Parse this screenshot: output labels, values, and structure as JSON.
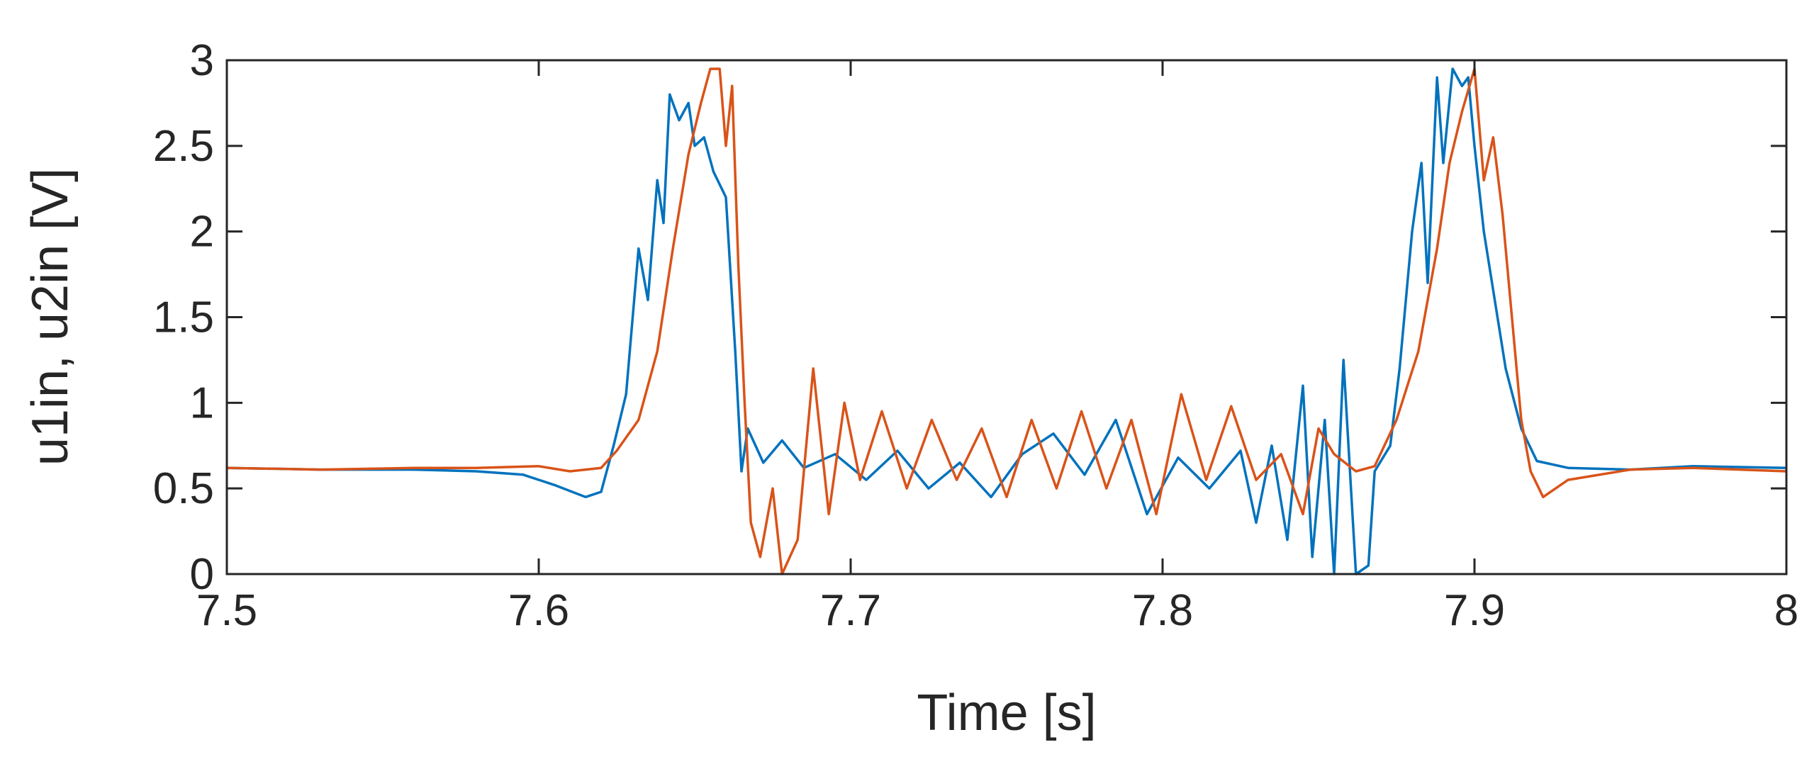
{
  "chart_data": {
    "type": "line",
    "xlabel": "Time [s]",
    "ylabel": "u1in, u2in [V]",
    "xlim": [
      7.5,
      8
    ],
    "ylim": [
      0,
      3
    ],
    "xticks": [
      "7.5",
      "7.6",
      "7.7",
      "7.8",
      "7.9",
      "8"
    ],
    "yticks": [
      "0",
      "0.5",
      "1",
      "1.5",
      "2",
      "2.5",
      "3"
    ],
    "grid": false,
    "legend": "none",
    "series": [
      {
        "color": "#0072BD",
        "points": [
          [
            7.5,
            0.62
          ],
          [
            7.53,
            0.61
          ],
          [
            7.56,
            0.61
          ],
          [
            7.58,
            0.6
          ],
          [
            7.595,
            0.58
          ],
          [
            7.605,
            0.52
          ],
          [
            7.615,
            0.45
          ],
          [
            7.62,
            0.48
          ],
          [
            7.624,
            0.75
          ],
          [
            7.628,
            1.05
          ],
          [
            7.632,
            1.9
          ],
          [
            7.635,
            1.6
          ],
          [
            7.638,
            2.3
          ],
          [
            7.64,
            2.05
          ],
          [
            7.642,
            2.8
          ],
          [
            7.645,
            2.65
          ],
          [
            7.648,
            2.75
          ],
          [
            7.65,
            2.5
          ],
          [
            7.653,
            2.55
          ],
          [
            7.656,
            2.35
          ],
          [
            7.66,
            2.2
          ],
          [
            7.663,
            1.3
          ],
          [
            7.665,
            0.6
          ],
          [
            7.667,
            0.85
          ],
          [
            7.672,
            0.65
          ],
          [
            7.678,
            0.78
          ],
          [
            7.685,
            0.62
          ],
          [
            7.695,
            0.7
          ],
          [
            7.705,
            0.55
          ],
          [
            7.715,
            0.72
          ],
          [
            7.725,
            0.5
          ],
          [
            7.735,
            0.65
          ],
          [
            7.745,
            0.45
          ],
          [
            7.755,
            0.7
          ],
          [
            7.765,
            0.82
          ],
          [
            7.775,
            0.58
          ],
          [
            7.785,
            0.9
          ],
          [
            7.795,
            0.35
          ],
          [
            7.805,
            0.68
          ],
          [
            7.815,
            0.5
          ],
          [
            7.825,
            0.72
          ],
          [
            7.83,
            0.3
          ],
          [
            7.835,
            0.75
          ],
          [
            7.84,
            0.2
          ],
          [
            7.845,
            1.1
          ],
          [
            7.848,
            0.1
          ],
          [
            7.852,
            0.9
          ],
          [
            7.855,
            0.0
          ],
          [
            7.858,
            1.25
          ],
          [
            7.862,
            0.0
          ],
          [
            7.866,
            0.05
          ],
          [
            7.868,
            0.6
          ],
          [
            7.873,
            0.75
          ],
          [
            7.876,
            1.2
          ],
          [
            7.88,
            2.0
          ],
          [
            7.883,
            2.4
          ],
          [
            7.885,
            1.7
          ],
          [
            7.888,
            2.9
          ],
          [
            7.89,
            2.4
          ],
          [
            7.893,
            2.95
          ],
          [
            7.896,
            2.85
          ],
          [
            7.898,
            2.9
          ],
          [
            7.9,
            2.5
          ],
          [
            7.903,
            2.0
          ],
          [
            7.91,
            1.2
          ],
          [
            7.915,
            0.85
          ],
          [
            7.92,
            0.66
          ],
          [
            7.93,
            0.62
          ],
          [
            7.95,
            0.61
          ],
          [
            7.97,
            0.63
          ],
          [
            8.0,
            0.62
          ]
        ]
      },
      {
        "color": "#D95319",
        "points": [
          [
            7.5,
            0.62
          ],
          [
            7.53,
            0.61
          ],
          [
            7.56,
            0.62
          ],
          [
            7.58,
            0.62
          ],
          [
            7.6,
            0.63
          ],
          [
            7.61,
            0.6
          ],
          [
            7.62,
            0.62
          ],
          [
            7.625,
            0.72
          ],
          [
            7.632,
            0.9
          ],
          [
            7.638,
            1.3
          ],
          [
            7.643,
            1.9
          ],
          [
            7.648,
            2.45
          ],
          [
            7.652,
            2.75
          ],
          [
            7.655,
            2.95
          ],
          [
            7.658,
            2.95
          ],
          [
            7.66,
            2.5
          ],
          [
            7.662,
            2.85
          ],
          [
            7.664,
            1.8
          ],
          [
            7.666,
            1.0
          ],
          [
            7.668,
            0.3
          ],
          [
            7.671,
            0.1
          ],
          [
            7.675,
            0.5
          ],
          [
            7.678,
            0.0
          ],
          [
            7.683,
            0.2
          ],
          [
            7.688,
            1.2
          ],
          [
            7.693,
            0.35
          ],
          [
            7.698,
            1.0
          ],
          [
            7.703,
            0.55
          ],
          [
            7.71,
            0.95
          ],
          [
            7.718,
            0.5
          ],
          [
            7.726,
            0.9
          ],
          [
            7.734,
            0.55
          ],
          [
            7.742,
            0.85
          ],
          [
            7.75,
            0.45
          ],
          [
            7.758,
            0.9
          ],
          [
            7.766,
            0.5
          ],
          [
            7.774,
            0.95
          ],
          [
            7.782,
            0.5
          ],
          [
            7.79,
            0.9
          ],
          [
            7.798,
            0.35
          ],
          [
            7.806,
            1.05
          ],
          [
            7.814,
            0.55
          ],
          [
            7.822,
            0.98
          ],
          [
            7.83,
            0.55
          ],
          [
            7.838,
            0.7
          ],
          [
            7.845,
            0.35
          ],
          [
            7.85,
            0.85
          ],
          [
            7.855,
            0.7
          ],
          [
            7.862,
            0.6
          ],
          [
            7.868,
            0.63
          ],
          [
            7.875,
            0.9
          ],
          [
            7.882,
            1.3
          ],
          [
            7.888,
            1.9
          ],
          [
            7.892,
            2.4
          ],
          [
            7.896,
            2.7
          ],
          [
            7.9,
            2.95
          ],
          [
            7.903,
            2.3
          ],
          [
            7.906,
            2.55
          ],
          [
            7.909,
            2.1
          ],
          [
            7.912,
            1.5
          ],
          [
            7.915,
            0.9
          ],
          [
            7.918,
            0.6
          ],
          [
            7.922,
            0.45
          ],
          [
            7.93,
            0.55
          ],
          [
            7.95,
            0.61
          ],
          [
            7.97,
            0.62
          ],
          [
            8.0,
            0.6
          ]
        ]
      }
    ]
  }
}
